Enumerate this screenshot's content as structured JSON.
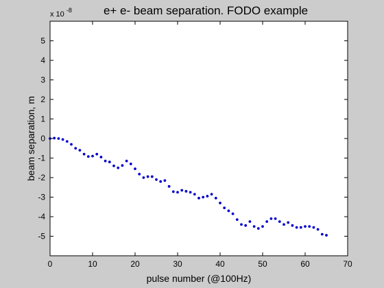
{
  "chart_data": {
    "type": "scatter",
    "title": "e+ e- beam separation. FODO example",
    "xlabel": "pulse number (@100Hz)",
    "ylabel": "beam separation, m",
    "y_multiplier": {
      "base": "x 10",
      "exponent": "-8"
    },
    "xlim": [
      0,
      70
    ],
    "ylim": [
      -6,
      6
    ],
    "xticks": [
      0,
      10,
      20,
      30,
      40,
      50,
      60,
      70
    ],
    "yticks": [
      5,
      4,
      3,
      2,
      1,
      0,
      -1,
      -2,
      -3,
      -4,
      -5
    ],
    "grid": false,
    "legend": "none",
    "colors": {
      "marker": "#0000cc",
      "axes_background": "#ffffff",
      "figure_background": "#cccccc",
      "axis": "#000000"
    },
    "series": [
      {
        "x": [
          0,
          1,
          2,
          3,
          4,
          5,
          6,
          7,
          8,
          9,
          10,
          11,
          12,
          13,
          14,
          15,
          16,
          17,
          18,
          19,
          20,
          21,
          22,
          23,
          24,
          25,
          26,
          27,
          28,
          29,
          30,
          31,
          32,
          33,
          34,
          35,
          36,
          37,
          38,
          39,
          40,
          41,
          42,
          43,
          44,
          45,
          46,
          47,
          48,
          49,
          50,
          51,
          52,
          53,
          54,
          55,
          56,
          57,
          58,
          59,
          60,
          61,
          62,
          63,
          64,
          65
        ],
        "y": [
          0.0,
          0.02,
          0.0,
          -0.05,
          -0.15,
          -0.3,
          -0.5,
          -0.6,
          -0.8,
          -0.92,
          -0.9,
          -0.8,
          -0.95,
          -1.15,
          -1.2,
          -1.4,
          -1.5,
          -1.38,
          -1.15,
          -1.3,
          -1.55,
          -1.82,
          -2.0,
          -1.95,
          -1.95,
          -2.1,
          -2.2,
          -2.15,
          -2.45,
          -2.72,
          -2.75,
          -2.65,
          -2.7,
          -2.75,
          -2.85,
          -3.05,
          -3.0,
          -2.95,
          -2.85,
          -3.05,
          -3.3,
          -3.55,
          -3.7,
          -3.85,
          -4.15,
          -4.4,
          -4.45,
          -4.25,
          -4.5,
          -4.6,
          -4.5,
          -4.25,
          -4.1,
          -4.1,
          -4.25,
          -4.4,
          -4.3,
          -4.45,
          -4.55,
          -4.55,
          -4.5,
          -4.5,
          -4.55,
          -4.65,
          -4.9,
          -4.95
        ]
      }
    ]
  }
}
